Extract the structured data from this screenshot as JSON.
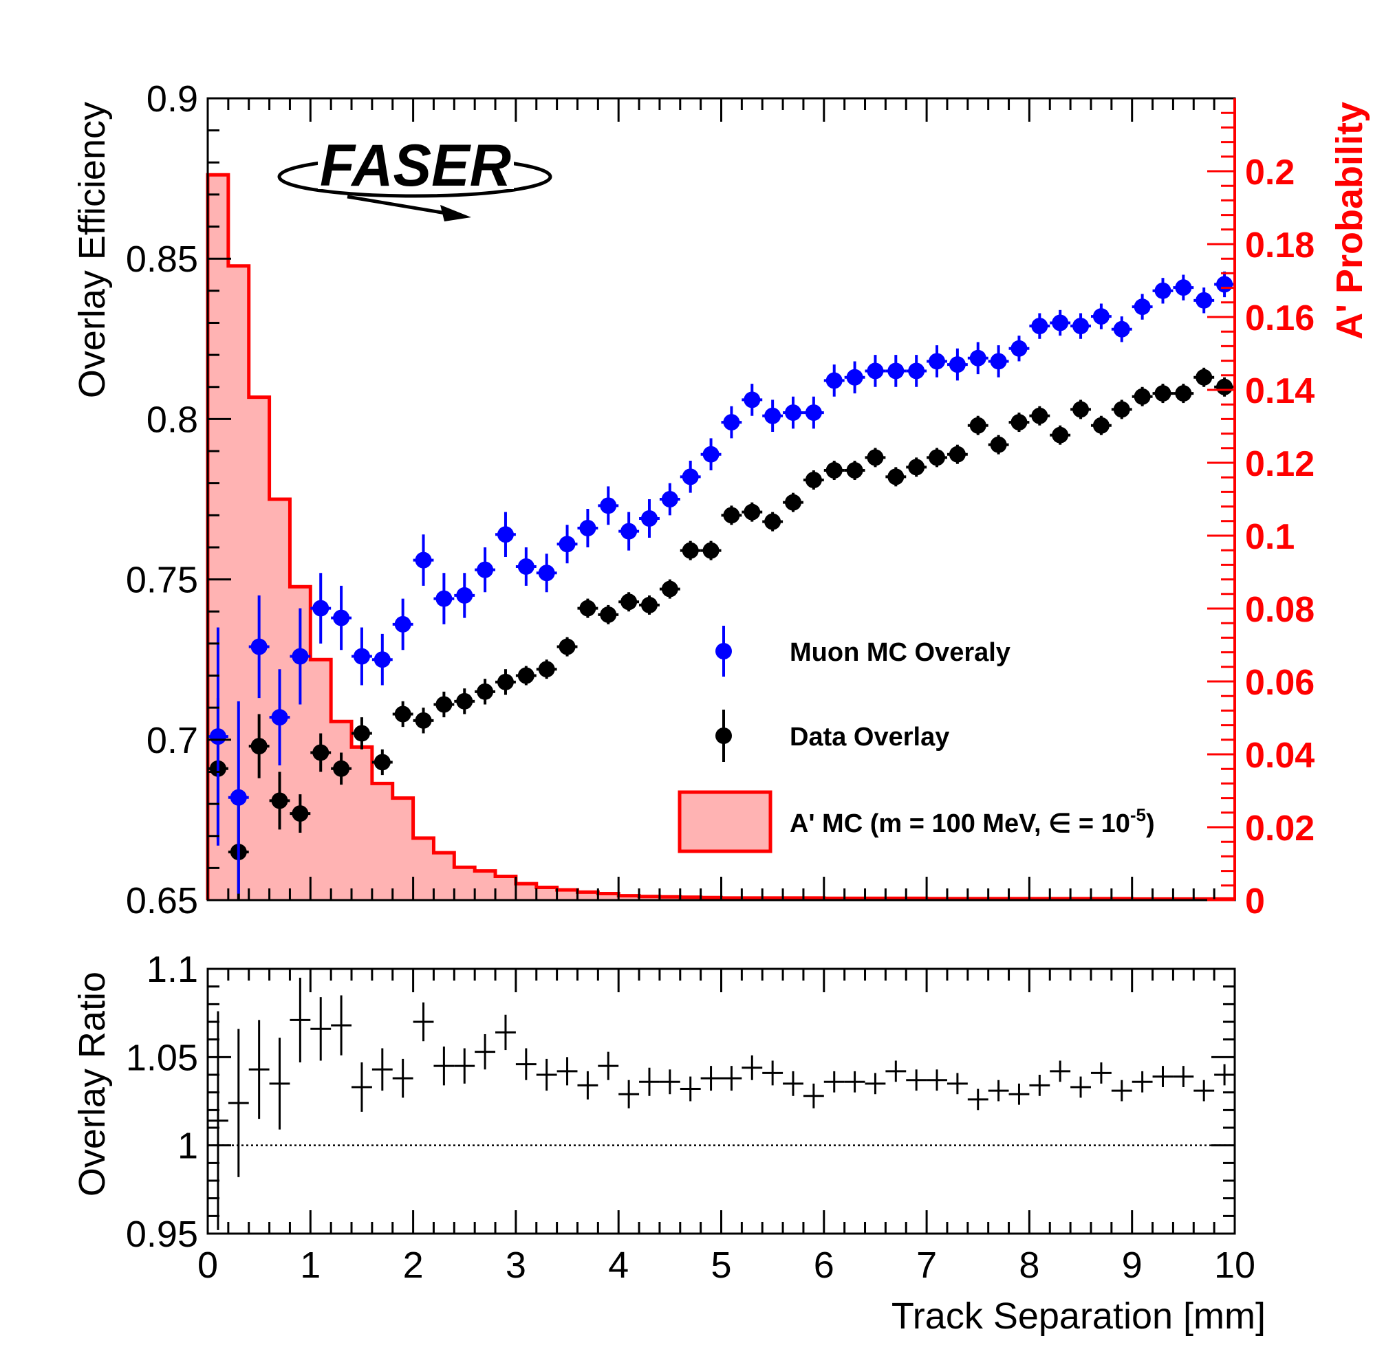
{
  "logo": {
    "text": "FASER"
  },
  "chart_data": [
    {
      "type": "scatter",
      "panel": "main",
      "xlim": [
        0,
        10
      ],
      "ylim": [
        0.65,
        0.9
      ],
      "ylabel": "Overlay Efficiency",
      "y_ticks": [
        0.65,
        0.7,
        0.75,
        0.8,
        0.85,
        0.9
      ],
      "y_tick_labels": [
        "0.65",
        "0.7",
        "0.75",
        "0.8",
        "0.85",
        "0.9"
      ],
      "secondary_axis": {
        "label": "A' Probability",
        "color": "#ff0000",
        "range": [
          0,
          0.22
        ],
        "ticks": [
          0,
          0.02,
          0.04,
          0.06,
          0.08,
          0.1,
          0.12,
          0.14,
          0.16,
          0.18,
          0.2
        ],
        "tick_labels": [
          "0",
          "0.02",
          "0.04",
          "0.06",
          "0.08",
          "0.1",
          "0.12",
          "0.14",
          "0.16",
          "0.18",
          "0.2"
        ]
      },
      "x": [
        0.1,
        0.3,
        0.5,
        0.7,
        0.9,
        1.1,
        1.3,
        1.5,
        1.7,
        1.9,
        2.1,
        2.3,
        2.5,
        2.7,
        2.9,
        3.1,
        3.3,
        3.5,
        3.7,
        3.9,
        4.1,
        4.3,
        4.5,
        4.7,
        4.9,
        5.1,
        5.3,
        5.5,
        5.7,
        5.9,
        6.1,
        6.3,
        6.5,
        6.7,
        6.9,
        7.1,
        7.3,
        7.5,
        7.7,
        7.9,
        8.1,
        8.3,
        8.5,
        8.7,
        8.9,
        9.1,
        9.3,
        9.5,
        9.7,
        9.9
      ],
      "series": [
        {
          "name": "Muon MC Overaly",
          "color": "#0000ff",
          "marker": "circle",
          "values": [
            0.701,
            0.682,
            0.729,
            0.707,
            0.726,
            0.741,
            0.738,
            0.726,
            0.725,
            0.736,
            0.756,
            0.744,
            0.745,
            0.753,
            0.764,
            0.754,
            0.752,
            0.761,
            0.766,
            0.773,
            0.765,
            0.769,
            0.775,
            0.782,
            0.789,
            0.799,
            0.806,
            0.801,
            0.802,
            0.802,
            0.812,
            0.813,
            0.815,
            0.815,
            0.815,
            0.818,
            0.817,
            0.819,
            0.818,
            0.822,
            0.829,
            0.83,
            0.829,
            0.832,
            0.828,
            0.835,
            0.84,
            0.841,
            0.837,
            0.842
          ],
          "errors": [
            0.034,
            0.03,
            0.016,
            0.015,
            0.015,
            0.011,
            0.01,
            0.009,
            0.008,
            0.008,
            0.008,
            0.008,
            0.007,
            0.007,
            0.007,
            0.006,
            0.006,
            0.006,
            0.006,
            0.006,
            0.006,
            0.006,
            0.005,
            0.005,
            0.005,
            0.005,
            0.005,
            0.005,
            0.005,
            0.005,
            0.005,
            0.005,
            0.005,
            0.005,
            0.005,
            0.005,
            0.005,
            0.005,
            0.005,
            0.004,
            0.004,
            0.004,
            0.004,
            0.004,
            0.004,
            0.004,
            0.004,
            0.004,
            0.004,
            0.004
          ]
        },
        {
          "name": "Data Overlay",
          "color": "#000000",
          "marker": "circle",
          "values": [
            0.691,
            0.665,
            0.698,
            0.681,
            0.677,
            0.696,
            0.691,
            0.702,
            0.693,
            0.708,
            0.706,
            0.711,
            0.712,
            0.715,
            0.718,
            0.72,
            0.722,
            0.729,
            0.741,
            0.739,
            0.743,
            0.742,
            0.747,
            0.759,
            0.759,
            0.77,
            0.771,
            0.768,
            0.774,
            0.781,
            0.784,
            0.784,
            0.788,
            0.782,
            0.785,
            0.788,
            0.789,
            0.798,
            0.792,
            0.799,
            0.801,
            0.795,
            0.803,
            0.798,
            0.803,
            0.807,
            0.808,
            0.808,
            0.813,
            0.81
          ],
          "errors": [
            0.022,
            0.016,
            0.01,
            0.009,
            0.006,
            0.006,
            0.005,
            0.005,
            0.004,
            0.004,
            0.004,
            0.004,
            0.004,
            0.004,
            0.004,
            0.003,
            0.003,
            0.003,
            0.003,
            0.003,
            0.003,
            0.003,
            0.003,
            0.003,
            0.003,
            0.003,
            0.003,
            0.003,
            0.003,
            0.003,
            0.003,
            0.003,
            0.003,
            0.003,
            0.003,
            0.003,
            0.003,
            0.003,
            0.003,
            0.003,
            0.003,
            0.003,
            0.003,
            0.003,
            0.003,
            0.003,
            0.003,
            0.003,
            0.003,
            0.003
          ]
        }
      ],
      "histogram": {
        "name": "A' MC (m = 100 MeV, ∈ = 10",
        "name_superscript": "-5",
        "name_suffix": ")",
        "fill_color": "#ffb3b3",
        "line_color": "#ff0000",
        "axis": "secondary",
        "bin_edges": [
          0,
          0.2,
          0.4,
          0.6,
          0.8,
          1.0,
          1.2,
          1.4,
          1.6,
          1.8,
          2.0,
          2.2,
          2.4,
          2.6,
          2.8,
          3.0,
          3.2,
          3.4,
          3.6,
          3.8,
          4.0,
          4.2,
          4.4,
          4.6,
          4.8,
          5.0,
          6.0,
          7.0,
          8.0,
          9.0,
          10.0
        ],
        "values": [
          0.199,
          0.174,
          0.138,
          0.11,
          0.086,
          0.066,
          0.049,
          0.042,
          0.032,
          0.028,
          0.017,
          0.013,
          0.009,
          0.008,
          0.0065,
          0.0045,
          0.0035,
          0.0028,
          0.0022,
          0.0018,
          0.0012,
          0.001,
          0.0009,
          0.0008,
          0.0007,
          0.0006,
          0.0005,
          0.0004,
          0.0004,
          0.0003
        ]
      }
    },
    {
      "type": "scatter",
      "panel": "ratio",
      "xlabel": "Track Separation [mm]",
      "ylabel": "Overlay Ratio",
      "xlim": [
        0,
        10
      ],
      "ylim": [
        0.95,
        1.1
      ],
      "x_ticks": [
        0,
        1,
        2,
        3,
        4,
        5,
        6,
        7,
        8,
        9,
        10
      ],
      "x_tick_labels": [
        "0",
        "1",
        "2",
        "3",
        "4",
        "5",
        "6",
        "7",
        "8",
        "9",
        "10"
      ],
      "y_ticks": [
        0.95,
        1,
        1.05,
        1.1
      ],
      "y_tick_labels": [
        "0.95",
        "1",
        "1.05",
        "1.1"
      ],
      "reference_line": 1.0,
      "x": [
        0.1,
        0.3,
        0.5,
        0.7,
        0.9,
        1.1,
        1.3,
        1.5,
        1.7,
        1.9,
        2.1,
        2.3,
        2.5,
        2.7,
        2.9,
        3.1,
        3.3,
        3.5,
        3.7,
        3.9,
        4.1,
        4.3,
        4.5,
        4.7,
        4.9,
        5.1,
        5.3,
        5.5,
        5.7,
        5.9,
        6.1,
        6.3,
        6.5,
        6.7,
        6.9,
        7.1,
        7.3,
        7.5,
        7.7,
        7.9,
        8.1,
        8.3,
        8.5,
        8.7,
        8.9,
        9.1,
        9.3,
        9.5,
        9.7,
        9.9
      ],
      "series": [
        {
          "name": "Ratio",
          "color": "#000000",
          "marker": "cross",
          "values": [
            1.014,
            1.024,
            1.043,
            1.035,
            1.071,
            1.066,
            1.068,
            1.033,
            1.043,
            1.038,
            1.07,
            1.045,
            1.045,
            1.053,
            1.064,
            1.046,
            1.04,
            1.042,
            1.034,
            1.045,
            1.029,
            1.036,
            1.036,
            1.032,
            1.038,
            1.038,
            1.044,
            1.041,
            1.035,
            1.028,
            1.036,
            1.036,
            1.035,
            1.042,
            1.037,
            1.037,
            1.035,
            1.026,
            1.031,
            1.029,
            1.034,
            1.042,
            1.033,
            1.041,
            1.031,
            1.036,
            1.039,
            1.039,
            1.031,
            1.04
          ],
          "errors": [
            0.062,
            0.042,
            0.028,
            0.026,
            0.024,
            0.018,
            0.017,
            0.014,
            0.012,
            0.011,
            0.011,
            0.011,
            0.01,
            0.01,
            0.01,
            0.009,
            0.009,
            0.008,
            0.008,
            0.008,
            0.008,
            0.008,
            0.007,
            0.007,
            0.007,
            0.007,
            0.007,
            0.007,
            0.007,
            0.007,
            0.006,
            0.006,
            0.006,
            0.006,
            0.006,
            0.006,
            0.006,
            0.006,
            0.006,
            0.006,
            0.006,
            0.006,
            0.006,
            0.006,
            0.006,
            0.006,
            0.006,
            0.006,
            0.006,
            0.006
          ]
        }
      ]
    }
  ]
}
